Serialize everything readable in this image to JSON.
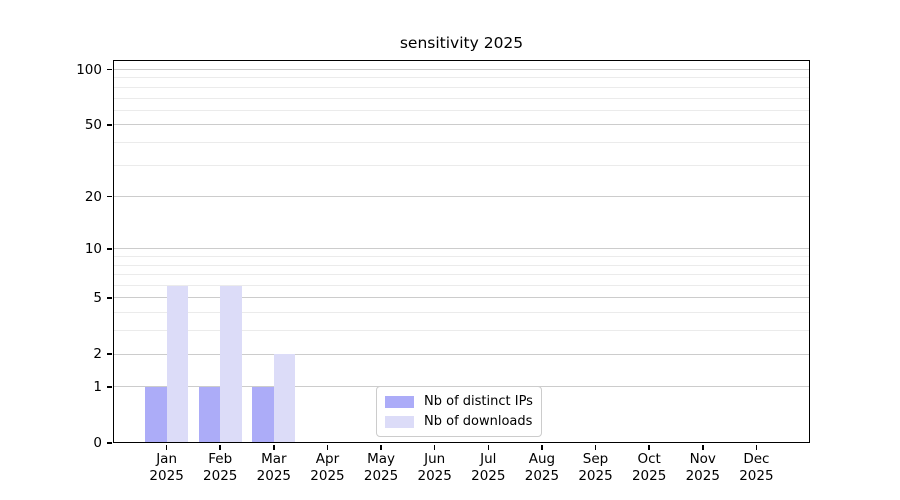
{
  "chart_data": {
    "type": "bar",
    "title": "sensitivity 2025",
    "categories": [
      "Jan",
      "Feb",
      "Mar",
      "Apr",
      "May",
      "Jun",
      "Jul",
      "Aug",
      "Sep",
      "Oct",
      "Nov",
      "Dec"
    ],
    "category_year": "2025",
    "series": [
      {
        "name": "Nb of distinct IPs",
        "color": "#acacf8",
        "values": [
          1,
          1,
          1,
          0,
          0,
          0,
          0,
          0,
          0,
          0,
          0,
          0
        ]
      },
      {
        "name": "Nb of downloads",
        "color": "#dcdcf8",
        "values": [
          6,
          6,
          2,
          0,
          0,
          0,
          0,
          0,
          0,
          0,
          0,
          0
        ]
      }
    ],
    "yscale": "log1p",
    "yticks_major": [
      0,
      1,
      2,
      5,
      10,
      20,
      50,
      100
    ],
    "yticks_minor": [
      3,
      4,
      6,
      7,
      8,
      9,
      30,
      40,
      60,
      70,
      80,
      90
    ],
    "ylim": [
      0,
      113
    ],
    "xlabel": "",
    "ylabel": "",
    "grid": "horizontal-major-and-minor",
    "legend_position": "lower center inside",
    "colors": {
      "grid_major": "#cccccc",
      "grid_minor": "#ebebeb",
      "axis": "#000000",
      "text": "#000000",
      "background": "#ffffff",
      "legend_border": "#cccccc"
    }
  }
}
